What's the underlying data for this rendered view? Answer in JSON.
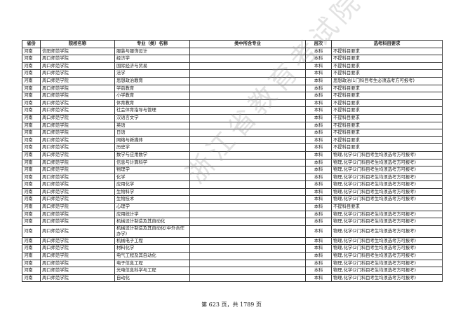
{
  "table": {
    "headers": [
      "省份",
      "院校名称",
      "专业（类）名称",
      "类中所含专业",
      "层次",
      "选考科目要求"
    ],
    "rows": [
      [
        "河南",
        "信阳师范学院",
        "服装与服饰设计",
        "",
        "本科",
        "不提科目要求"
      ],
      [
        "河南",
        "周口师范学院",
        "经济学",
        "",
        "本科",
        "不提科目要求"
      ],
      [
        "河南",
        "周口师范学院",
        "国际经济与贸易",
        "",
        "本科",
        "不提科目要求"
      ],
      [
        "河南",
        "周口师范学院",
        "法学",
        "",
        "本科",
        "不提科目要求"
      ],
      [
        "河南",
        "周口师范学院",
        "思想政治教育",
        "",
        "本科",
        "思想政治(1门科目考生必须选考方可报考)"
      ],
      [
        "河南",
        "周口师范学院",
        "学前教育",
        "",
        "本科",
        "不提科目要求"
      ],
      [
        "河南",
        "周口师范学院",
        "小学教育",
        "",
        "本科",
        "不提科目要求"
      ],
      [
        "河南",
        "周口师范学院",
        "体育教育",
        "",
        "本科",
        "不提科目要求"
      ],
      [
        "河南",
        "周口师范学院",
        "社会体育指导与管理",
        "",
        "本科",
        "不提科目要求"
      ],
      [
        "河南",
        "周口师范学院",
        "汉语言文学",
        "",
        "本科",
        "不提科目要求"
      ],
      [
        "河南",
        "周口师范学院",
        "英语",
        "",
        "本科",
        "不提科目要求"
      ],
      [
        "河南",
        "周口师范学院",
        "日语",
        "",
        "本科",
        "不提科目要求"
      ],
      [
        "河南",
        "周口师范学院",
        "网络与新媒体",
        "",
        "本科",
        "不提科目要求"
      ],
      [
        "河南",
        "周口师范学院",
        "历史学",
        "",
        "本科",
        "不提科目要求"
      ],
      [
        "河南",
        "周口师范学院",
        "数学与应用数学",
        "",
        "本科",
        "物理,化学(2门科目考生均须选考方可报考)"
      ],
      [
        "河南",
        "周口师范学院",
        "信息与计算科学",
        "",
        "本科",
        "物理,化学(2门科目考生均须选考方可报考)"
      ],
      [
        "河南",
        "周口师范学院",
        "物理学",
        "",
        "本科",
        "物理,化学(2门科目考生均须选考方可报考)"
      ],
      [
        "河南",
        "周口师范学院",
        "化学",
        "",
        "本科",
        "物理,化学(2门科目考生均须选考方可报考)"
      ],
      [
        "河南",
        "周口师范学院",
        "应用化学",
        "",
        "本科",
        "物理,化学(2门科目考生均须选考方可报考)"
      ],
      [
        "河南",
        "周口师范学院",
        "生物科学",
        "",
        "本科",
        "物理,化学(2门科目考生均须选考方可报考)"
      ],
      [
        "河南",
        "周口师范学院",
        "生物技术",
        "",
        "本科",
        "物理,化学(2门科目考生均须选考方可报考)"
      ],
      [
        "河南",
        "周口师范学院",
        "心理学",
        "",
        "本科",
        "不提科目要求"
      ],
      [
        "河南",
        "周口师范学院",
        "应用统计学",
        "",
        "本科",
        "物理,化学(2门科目考生均须选考方可报考)"
      ],
      [
        "河南",
        "周口师范学院",
        "机械设计制造及其自动化",
        "",
        "本科",
        "物理,化学(2门科目考生均须选考方可报考)"
      ],
      [
        "河南",
        "周口师范学院",
        "机械设计制造及其自动化(中外合作办学)",
        "",
        "本科",
        "物理,化学(2门科目考生均须选考方可报考)"
      ],
      [
        "河南",
        "周口师范学院",
        "机械电子工程",
        "",
        "本科",
        "物理,化学(2门科目考生均须选考方可报考)"
      ],
      [
        "河南",
        "周口师范学院",
        "材料化学",
        "",
        "本科",
        "物理,化学(2门科目考生均须选考方可报考)"
      ],
      [
        "河南",
        "周口师范学院",
        "电气工程及其自动化",
        "",
        "本科",
        "物理,化学(2门科目考生均须选考方可报考)"
      ],
      [
        "河南",
        "周口师范学院",
        "电子信息工程",
        "",
        "本科",
        "物理,化学(2门科目考生均须选考方可报考)"
      ],
      [
        "河南",
        "周口师范学院",
        "光电信息科学与工程",
        "",
        "本科",
        "物理,化学(2门科目考生均须选考方可报考)"
      ],
      [
        "河南",
        "周口师范学院",
        "自动化",
        "",
        "本科",
        "物理,化学(2门科目考生均须选考方可报考)"
      ]
    ]
  },
  "footer": {
    "text": "第 623 页，共 1789 页"
  },
  "watermark": {
    "text": "浙江省教育考试院"
  }
}
